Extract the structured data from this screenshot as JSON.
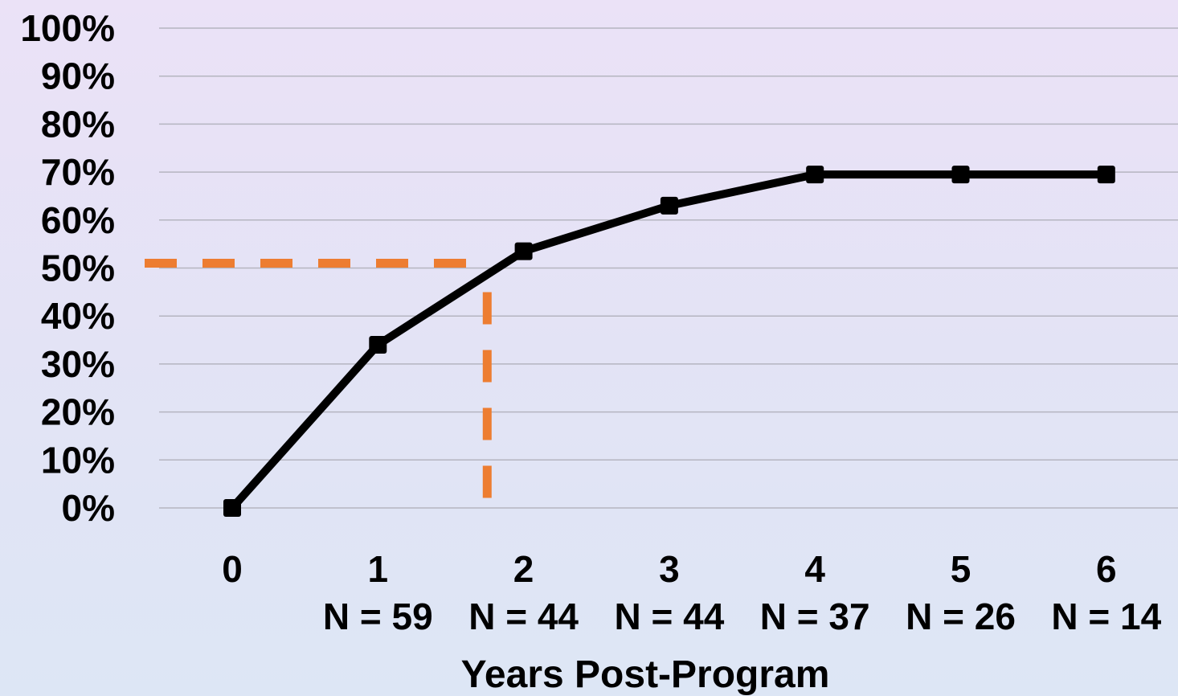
{
  "chart_data": {
    "type": "line",
    "title": "",
    "xlabel": "Years Post-Program",
    "ylabel": "",
    "x": [
      0,
      1,
      2,
      3,
      4,
      5,
      6
    ],
    "categories": [
      "0",
      "1",
      "2",
      "3",
      "4",
      "5",
      "6"
    ],
    "sample_sizes": [
      "",
      "N = 59",
      "N = 44",
      "N = 44",
      "N = 37",
      "N = 26",
      "N = 14"
    ],
    "series": [
      {
        "values": [
          0,
          34,
          53.5,
          63,
          69.5,
          69.5,
          69.5
        ],
        "color": "#000000"
      }
    ],
    "ylim": [
      0,
      100
    ],
    "yticks": [
      "0%",
      "10%",
      "20%",
      "30%",
      "40%",
      "50%",
      "60%",
      "70%",
      "80%",
      "90%",
      "100%"
    ],
    "grid": true,
    "reference_lines": {
      "y_value": 51,
      "x_value": 1.75,
      "color": "#ed7d31",
      "style": "dashed"
    }
  }
}
